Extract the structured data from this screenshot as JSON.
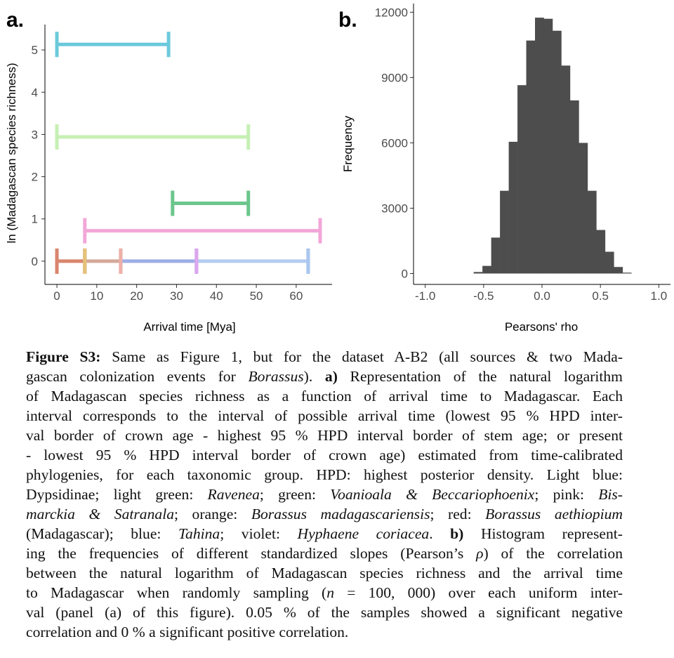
{
  "panels": {
    "a": {
      "label": "a.",
      "xlabel": "Arrival time [Mya]",
      "ylabel": "ln (Madagascan species richness)"
    },
    "b": {
      "label": "b.",
      "xlabel": "Pearsons' rho",
      "ylabel": "Frequency"
    }
  },
  "chart_data": [
    {
      "type": "interval",
      "xlabel": "Arrival time [Mya]",
      "ylabel": "ln (Madagascan species richness)",
      "xlim": [
        -3,
        69
      ],
      "ylim": [
        -0.55,
        5.6
      ],
      "x_ticks": [
        0,
        10,
        20,
        30,
        40,
        50,
        60
      ],
      "y_ticks": [
        0,
        1,
        2,
        3,
        4,
        5
      ],
      "intervals": [
        {
          "y": 5.13,
          "x_start": 0,
          "x_end": 28,
          "color": "#6cc9dc"
        },
        {
          "y": 2.94,
          "x_start": 0,
          "x_end": 48,
          "color": "#c6f0b4"
        },
        {
          "y": 1.37,
          "x_start": 29,
          "x_end": 48,
          "color": "#6cc68c"
        },
        {
          "y": 0.72,
          "x_start": 7,
          "x_end": 66,
          "color": "#f2a6d8"
        },
        {
          "y": 0,
          "x_start": 0,
          "x_end": 7,
          "color": "#d9866e"
        },
        {
          "y": 0,
          "x_start": 7,
          "x_end": 16,
          "color": "#d4a99a"
        },
        {
          "y": 0,
          "x_start": 16,
          "x_end": 35,
          "color": "#9daee6"
        },
        {
          "y": 0,
          "x_start": 35,
          "x_end": 63,
          "color": "#b3cdf0"
        }
      ],
      "caps": [
        {
          "x": 0,
          "y": 0,
          "color": "#d9866e"
        },
        {
          "x": 7,
          "y": 0,
          "color": "#e6c27a"
        },
        {
          "x": 16,
          "y": 0,
          "color": "#eeb0a8"
        },
        {
          "x": 35,
          "y": 0,
          "color": "#dca6ee"
        },
        {
          "x": 63,
          "y": 0,
          "color": "#a9c6ee"
        }
      ]
    },
    {
      "type": "histogram",
      "xlabel": "Pearsons' rho",
      "ylabel": "Frequency",
      "xlim": [
        -1.1,
        1.1
      ],
      "ylim": [
        -500,
        12400
      ],
      "x_ticks": [
        -1.0,
        -0.5,
        0.0,
        0.5,
        1.0
      ],
      "y_ticks": [
        0,
        3000,
        6000,
        9000,
        12000
      ],
      "bin_width": 0.075,
      "bins_start": -0.585,
      "counts": [
        70,
        350,
        1650,
        3800,
        6050,
        8650,
        10700,
        11750,
        11700,
        11150,
        9550,
        7950,
        6000,
        3800,
        2000,
        1000,
        300,
        40
      ],
      "color": "#4d4d4d"
    }
  ],
  "caption": {
    "lines": [
      [
        {
          "t": "Figure S3:",
          "s": "b"
        },
        {
          "t": " Same as Figure 1, but for the dataset A-B2 (all sources & two Mada-"
        }
      ],
      [
        {
          "t": "gascan colonization events for "
        },
        {
          "t": "Borassus",
          "s": "i"
        },
        {
          "t": "). "
        },
        {
          "t": "a)",
          "s": "b"
        },
        {
          "t": " Representation of the natural logarithm"
        }
      ],
      [
        {
          "t": "of Madagascan species richness as a function of arrival time to Madagascar.  Each"
        }
      ],
      [
        {
          "t": "interval corresponds to the interval of possible arrival time (lowest 95 % HPD inter-"
        }
      ],
      [
        {
          "t": "val border of crown age - highest 95 % HPD interval border of stem age; or present"
        }
      ],
      [
        {
          "t": "- lowest 95 % HPD interval border of crown age) estimated from time-calibrated"
        }
      ],
      [
        {
          "t": "phylogenies, for each taxonomic group.  HPD: highest posterior density.  Light blue:"
        }
      ],
      [
        {
          "t": "Dypsidinae; light green: "
        },
        {
          "t": "Ravenea",
          "s": "i"
        },
        {
          "t": "; green: "
        },
        {
          "t": "Voanioala & Beccariophoenix",
          "s": "i"
        },
        {
          "t": "; pink: "
        },
        {
          "t": "Bis-",
          "s": "i"
        }
      ],
      [
        {
          "t": "marckia & Satranala",
          "s": "i"
        },
        {
          "t": "; orange: "
        },
        {
          "t": "Borassus madagascariensis",
          "s": "i"
        },
        {
          "t": "; red: "
        },
        {
          "t": "Borassus aethiopium",
          "s": "i"
        }
      ],
      [
        {
          "t": "(Madagascar); blue: "
        },
        {
          "t": "Tahina",
          "s": "i"
        },
        {
          "t": "; violet: "
        },
        {
          "t": "Hyphaene coriacea",
          "s": "i"
        },
        {
          "t": ". "
        },
        {
          "t": "b)",
          "s": "b"
        },
        {
          "t": " Histogram represent-"
        }
      ],
      [
        {
          "t": "ing the frequencies of different standardized slopes (Pearson’s "
        },
        {
          "t": "ρ",
          "s": "i"
        },
        {
          "t": ") of the correlation"
        }
      ],
      [
        {
          "t": "between the natural logarithm of Madagascan species richness and the arrival time"
        }
      ],
      [
        {
          "t": "to Madagascar when randomly sampling ("
        },
        {
          "t": "n",
          "s": "i"
        },
        {
          "t": " = 100, 000) over each uniform inter-"
        }
      ],
      [
        {
          "t": "val (panel (a) of this figure).  0.05 % of the samples showed a significant negative"
        }
      ],
      [
        {
          "t": "correlation and 0 % a significant positive correlation."
        }
      ]
    ]
  }
}
